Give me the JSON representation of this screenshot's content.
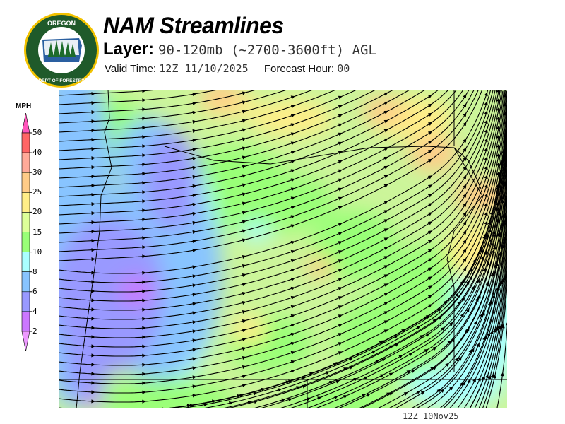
{
  "header": {
    "title": "NAM Streamlines",
    "layer_label": "Layer:",
    "layer_value": "90-120mb (~2700-3600ft) AGL",
    "valid_time_label": "Valid Time:",
    "valid_time_value": "12Z 11/10/2025",
    "forecast_hour_label": "Forecast Hour:",
    "forecast_hour_value": "00"
  },
  "logo": {
    "text_top": "OREGON",
    "text_bottom": "DEPARTMENT OF FORESTRY",
    "colors": {
      "ring": "#1f5a2a",
      "border": "#f2c200"
    }
  },
  "legend": {
    "unit": "MPH",
    "ticks": [
      "50",
      "40",
      "30",
      "25",
      "20",
      "15",
      "10",
      "8",
      "6",
      "4",
      "2"
    ],
    "colors": {
      "above_50": "#ff55bb",
      "40-50": "#ff6666",
      "30-40": "#ffaa99",
      "25-30": "#ffcc88",
      "20-25": "#ffee88",
      "15-20": "#ddff99",
      "10-15": "#99ff77",
      "8-10": "#aaffff",
      "6-8": "#88c4ff",
      "4-6": "#9999ff",
      "2-4": "#cc77ff",
      "below_2": "#ee99ff"
    }
  },
  "footer": {
    "run_label": "12Z 10Nov25"
  }
}
